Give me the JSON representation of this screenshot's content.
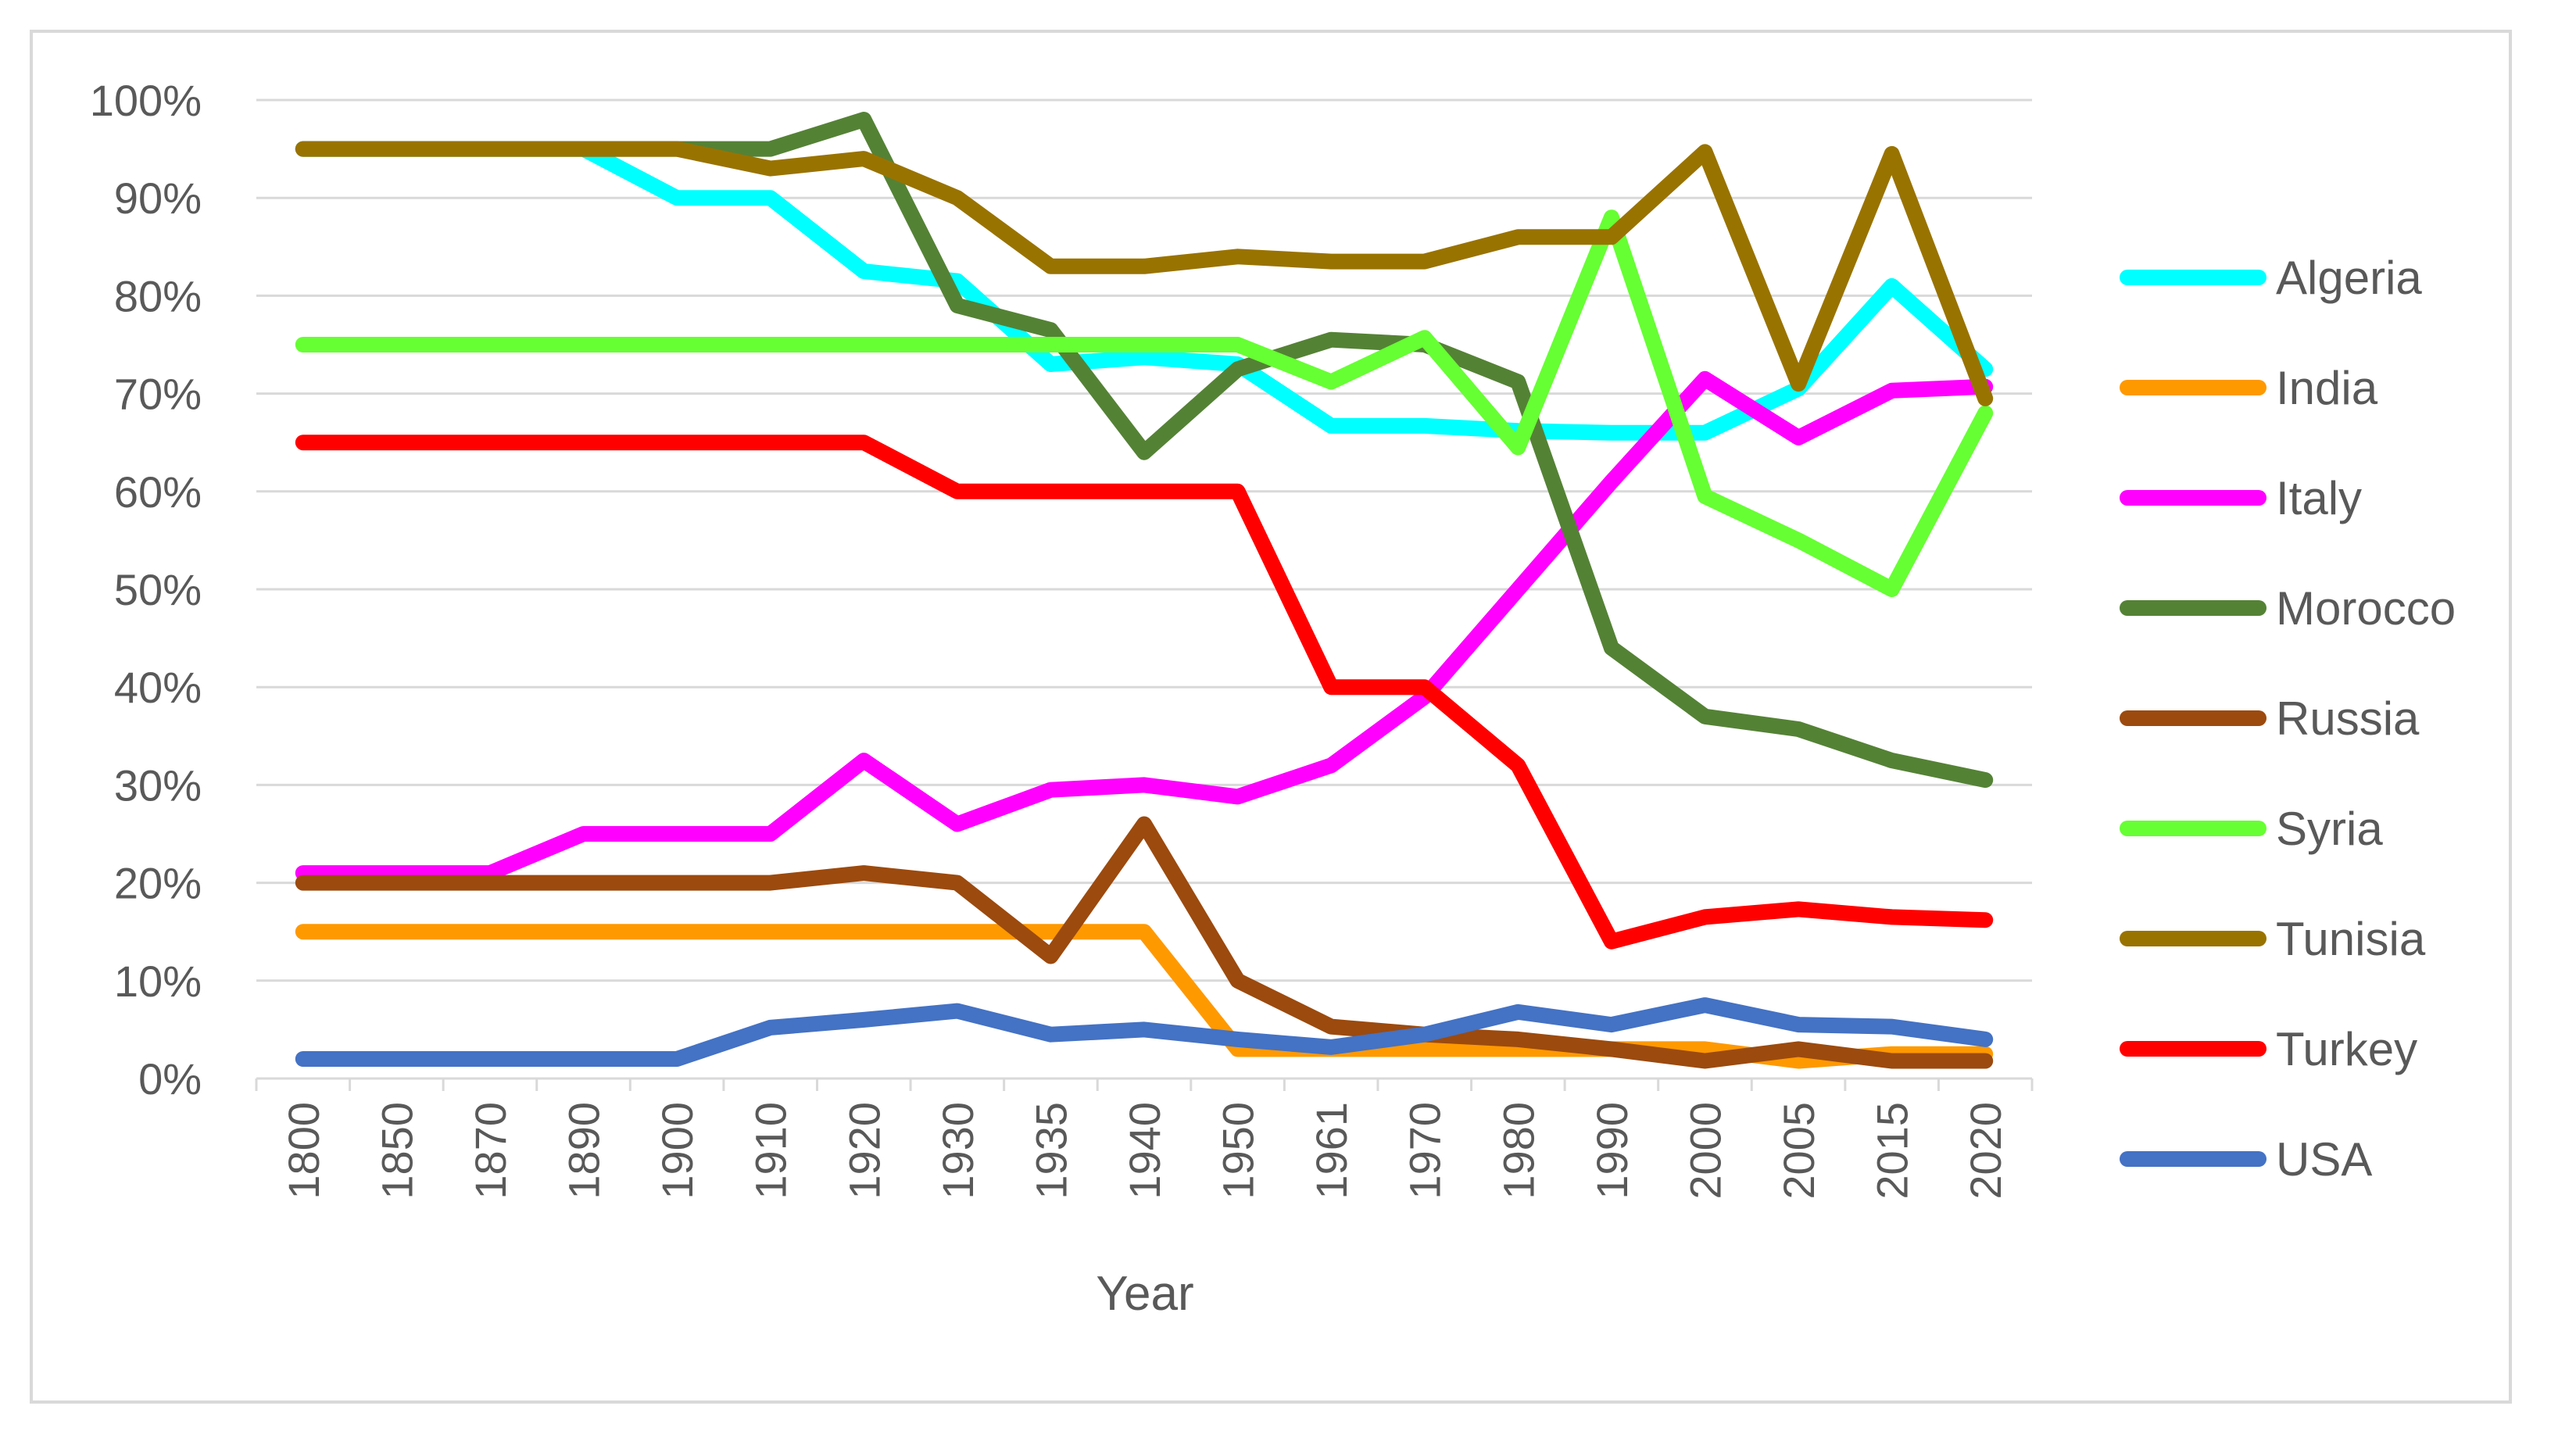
{
  "chart_data": {
    "type": "line",
    "title": "",
    "xlabel": "Year",
    "ylabel": "",
    "ylim": [
      0,
      1
    ],
    "yticks": [
      "0%",
      "10%",
      "20%",
      "30%",
      "40%",
      "50%",
      "60%",
      "70%",
      "80%",
      "90%",
      "100%"
    ],
    "grid": true,
    "legend": "right",
    "categories": [
      "1800",
      "1850",
      "1870",
      "1890",
      "1900",
      "1910",
      "1920",
      "1930",
      "1935",
      "1940",
      "1950",
      "1961",
      "1970",
      "1980",
      "1990",
      "2000",
      "2005",
      "2015",
      "2020"
    ],
    "series": [
      {
        "name": "Algeria",
        "color": "#00ffff",
        "values": [
          0.95,
          0.95,
          0.95,
          0.95,
          0.9,
          0.9,
          0.825,
          0.815,
          0.73,
          0.737,
          0.73,
          0.667,
          0.667,
          0.662,
          0.66,
          0.66,
          0.705,
          0.81,
          0.725
        ]
      },
      {
        "name": "India",
        "color": "#ff9900",
        "values": [
          0.15,
          0.15,
          0.15,
          0.15,
          0.15,
          0.15,
          0.15,
          0.15,
          0.15,
          0.15,
          0.03,
          0.03,
          0.03,
          0.03,
          0.03,
          0.03,
          0.018,
          0.025,
          0.025
        ]
      },
      {
        "name": "Italy",
        "color": "#ff00ff",
        "values": [
          0.21,
          0.21,
          0.21,
          0.25,
          0.25,
          0.25,
          0.325,
          0.26,
          0.295,
          0.3,
          0.288,
          0.32,
          0.39,
          0.5,
          0.61,
          0.715,
          0.655,
          0.703,
          0.707
        ]
      },
      {
        "name": "Morocco",
        "color": "#548235",
        "values": [
          0.95,
          0.95,
          0.95,
          0.95,
          0.95,
          0.95,
          0.98,
          0.79,
          0.765,
          0.64,
          0.725,
          0.755,
          0.75,
          0.712,
          0.44,
          0.37,
          0.357,
          0.325,
          0.305
        ]
      },
      {
        "name": "Russia",
        "color": "#9c4a0e",
        "values": [
          0.2,
          0.2,
          0.2,
          0.2,
          0.2,
          0.2,
          0.21,
          0.2,
          0.125,
          0.26,
          0.1,
          0.053,
          0.045,
          0.04,
          0.03,
          0.018,
          0.03,
          0.018,
          0.018
        ]
      },
      {
        "name": "Syria",
        "color": "#66ff33",
        "values": [
          0.75,
          0.75,
          0.75,
          0.75,
          0.75,
          0.75,
          0.75,
          0.75,
          0.75,
          0.75,
          0.75,
          0.712,
          0.757,
          0.645,
          0.88,
          0.595,
          0.55,
          0.5,
          0.68
        ]
      },
      {
        "name": "Tunisia",
        "color": "#997300",
        "values": [
          0.95,
          0.95,
          0.95,
          0.95,
          0.95,
          0.93,
          0.94,
          0.9,
          0.83,
          0.83,
          0.84,
          0.835,
          0.835,
          0.86,
          0.86,
          0.947,
          0.71,
          0.945,
          0.695
        ]
      },
      {
        "name": "Turkey",
        "color": "#ff0000",
        "values": [
          0.65,
          0.65,
          0.65,
          0.65,
          0.65,
          0.65,
          0.65,
          0.6,
          0.6,
          0.6,
          0.6,
          0.4,
          0.4,
          0.32,
          0.14,
          0.165,
          0.173,
          0.165,
          0.162
        ]
      },
      {
        "name": "USA",
        "color": "#4472c4",
        "values": [
          0.02,
          0.02,
          0.02,
          0.02,
          0.02,
          0.052,
          0.06,
          0.069,
          0.045,
          0.05,
          0.04,
          0.032,
          0.045,
          0.068,
          0.055,
          0.075,
          0.055,
          0.053,
          0.04
        ]
      }
    ]
  }
}
